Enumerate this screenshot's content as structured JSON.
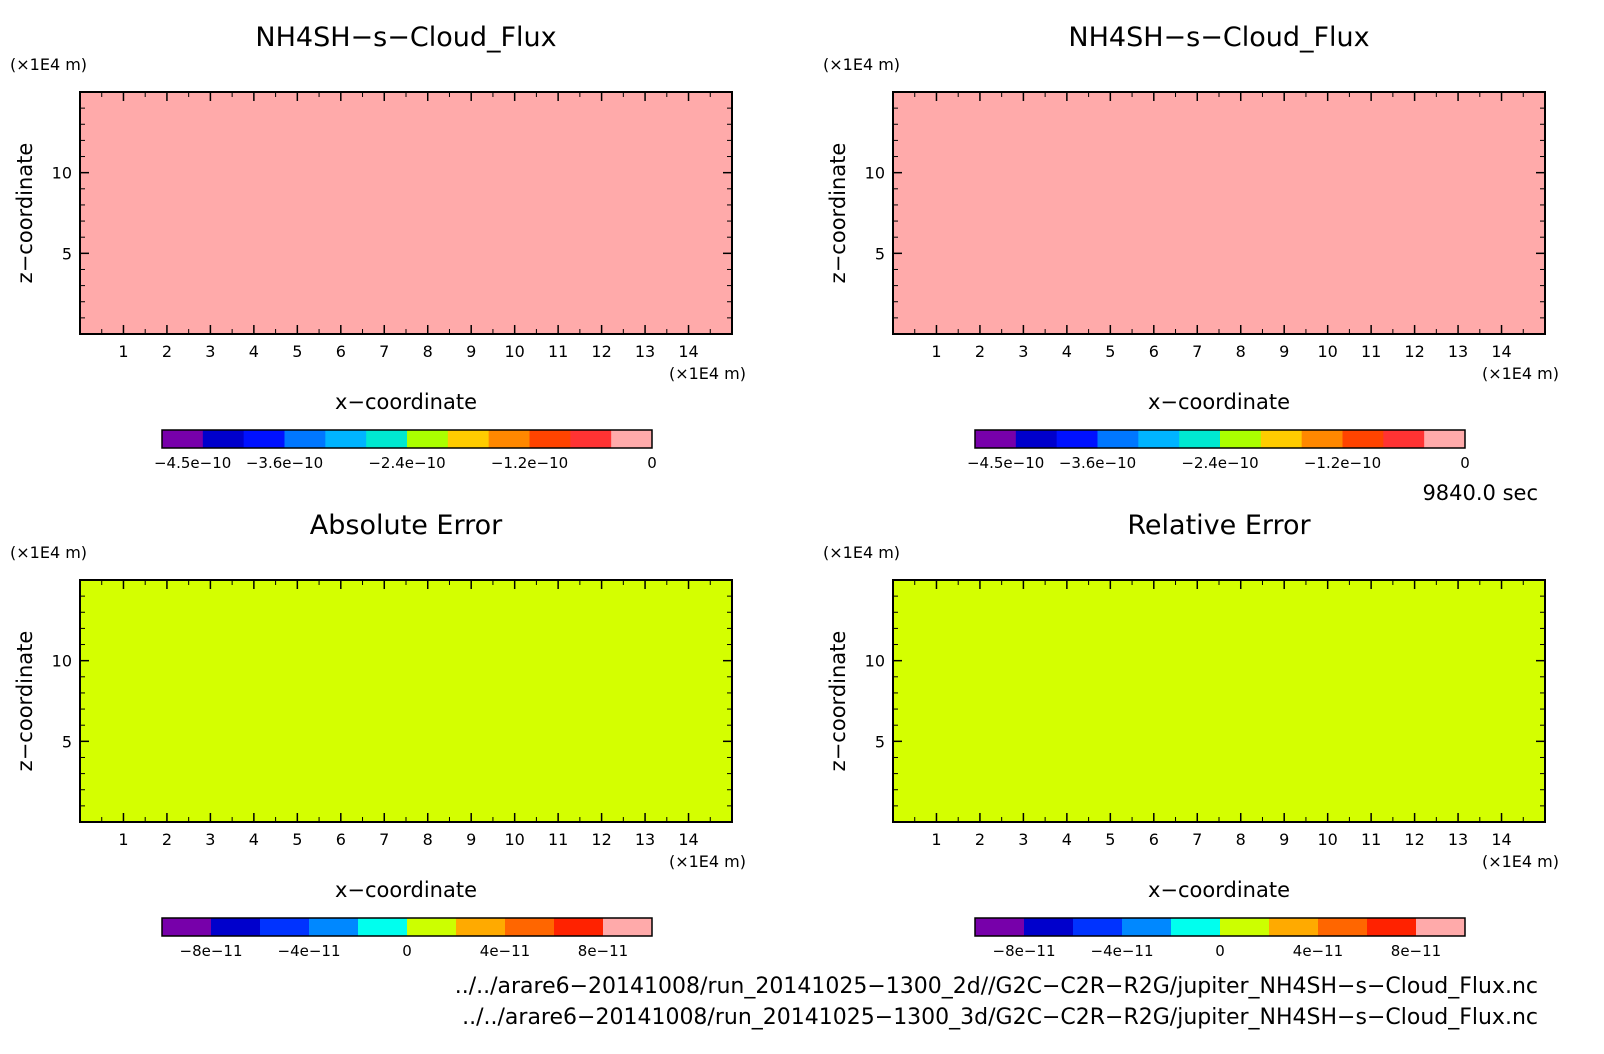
{
  "panels": [
    {
      "title": "NH4SH−s−Cloud_Flux",
      "y_unit": "(×1E4 m)",
      "x_unit": "(×1E4 m)",
      "xlabel": "x−coordinate",
      "ylabel": "z−coordinate",
      "fill_color": "#ffaaaa",
      "colorbar": {
        "colors": [
          "#7700aa",
          "#0000cc",
          "#0011ff",
          "#0077ff",
          "#00b4ff",
          "#00e8d0",
          "#aaff00",
          "#ffcc00",
          "#ff8800",
          "#ff4400",
          "#ff3333",
          "#ffaaaa"
        ],
        "tick_labels": [
          "−4.5e−10",
          "−3.6e−10",
          "−2.4e−10",
          "−1.2e−10",
          "0"
        ]
      }
    },
    {
      "title": "NH4SH−s−Cloud_Flux",
      "y_unit": "(×1E4 m)",
      "x_unit": "(×1E4 m)",
      "xlabel": "x−coordinate",
      "ylabel": "z−coordinate",
      "fill_color": "#ffaaaa",
      "colorbar": {
        "colors": [
          "#7700aa",
          "#0000cc",
          "#0011ff",
          "#0077ff",
          "#00b4ff",
          "#00e8d0",
          "#aaff00",
          "#ffcc00",
          "#ff8800",
          "#ff4400",
          "#ff3333",
          "#ffaaaa"
        ],
        "tick_labels": [
          "−4.5e−10",
          "−3.6e−10",
          "−2.4e−10",
          "−1.2e−10",
          "0"
        ]
      }
    },
    {
      "title": "Absolute Error",
      "y_unit": "(×1E4 m)",
      "x_unit": "(×1E4 m)",
      "xlabel": "x−coordinate",
      "ylabel": "z−coordinate",
      "fill_color": "#d4ff00",
      "colorbar": {
        "colors": [
          "#7700aa",
          "#0000cc",
          "#0033ff",
          "#0088ff",
          "#00ffee",
          "#ccff00",
          "#ffaa00",
          "#ff6600",
          "#ff2200",
          "#ffaaaa"
        ],
        "tick_labels": [
          "−8e−11",
          "−4e−11",
          "0",
          "4e−11",
          "8e−11"
        ]
      }
    },
    {
      "title": "Relative Error",
      "y_unit": "(×1E4 m)",
      "x_unit": "(×1E4 m)",
      "xlabel": "x−coordinate",
      "ylabel": "z−coordinate",
      "fill_color": "#d4ff00",
      "colorbar": {
        "colors": [
          "#7700aa",
          "#0000cc",
          "#0033ff",
          "#0088ff",
          "#00ffee",
          "#ccff00",
          "#ffaa00",
          "#ff6600",
          "#ff2200",
          "#ffaaaa"
        ],
        "tick_labels": [
          "−8e−11",
          "−4e−11",
          "0",
          "4e−11",
          "8e−11"
        ]
      }
    }
  ],
  "time_label": "9840.0 sec",
  "file_paths": [
    "../../arare6−20141008/run_20141025−1300_2d//G2C−C2R−R2G/jupiter_NH4SH−s−Cloud_Flux.nc",
    "../../arare6−20141008/run_20141025−1300_3d/G2C−C2R−R2G/jupiter_NH4SH−s−Cloud_Flux.nc"
  ],
  "chart_data": [
    {
      "type": "heatmap",
      "title": "NH4SH−s−Cloud_Flux",
      "xlabel": "x−coordinate",
      "ylabel": "z−coordinate",
      "x_ticks": [
        1,
        2,
        3,
        4,
        5,
        6,
        7,
        8,
        9,
        10,
        11,
        12,
        13,
        14
      ],
      "y_ticks": [
        5,
        10
      ],
      "xlim": [
        0,
        15
      ],
      "ylim": [
        0,
        15
      ],
      "field_value": 0,
      "colorbar_ticks": [
        -4.5e-10,
        -3.6e-10,
        -2.4e-10,
        -1.2e-10,
        0
      ],
      "colorbar_range": [
        -4.8e-10,
        0
      ],
      "colorbar_levels": 12
    },
    {
      "type": "heatmap",
      "title": "NH4SH−s−Cloud_Flux",
      "xlabel": "x−coordinate",
      "ylabel": "z−coordinate",
      "x_ticks": [
        1,
        2,
        3,
        4,
        5,
        6,
        7,
        8,
        9,
        10,
        11,
        12,
        13,
        14
      ],
      "y_ticks": [
        5,
        10
      ],
      "xlim": [
        0,
        15
      ],
      "ylim": [
        0,
        15
      ],
      "field_value": 0,
      "colorbar_ticks": [
        -4.5e-10,
        -3.6e-10,
        -2.4e-10,
        -1.2e-10,
        0
      ],
      "colorbar_range": [
        -4.8e-10,
        0
      ],
      "colorbar_levels": 12
    },
    {
      "type": "heatmap",
      "title": "Absolute Error",
      "xlabel": "x−coordinate",
      "ylabel": "z−coordinate",
      "x_ticks": [
        1,
        2,
        3,
        4,
        5,
        6,
        7,
        8,
        9,
        10,
        11,
        12,
        13,
        14
      ],
      "y_ticks": [
        5,
        10
      ],
      "xlim": [
        0,
        15
      ],
      "ylim": [
        0,
        15
      ],
      "field_value": 0,
      "colorbar_ticks": [
        -8e-11,
        -4e-11,
        0,
        4e-11,
        8e-11
      ],
      "colorbar_range": [
        -1e-10,
        1e-10
      ],
      "colorbar_levels": 10
    },
    {
      "type": "heatmap",
      "title": "Relative Error",
      "xlabel": "x−coordinate",
      "ylabel": "z−coordinate",
      "x_ticks": [
        1,
        2,
        3,
        4,
        5,
        6,
        7,
        8,
        9,
        10,
        11,
        12,
        13,
        14
      ],
      "y_ticks": [
        5,
        10
      ],
      "xlim": [
        0,
        15
      ],
      "ylim": [
        0,
        15
      ],
      "field_value": 0,
      "colorbar_ticks": [
        -8e-11,
        -4e-11,
        0,
        4e-11,
        8e-11
      ],
      "colorbar_range": [
        -1e-10,
        1e-10
      ],
      "colorbar_levels": 10
    }
  ]
}
